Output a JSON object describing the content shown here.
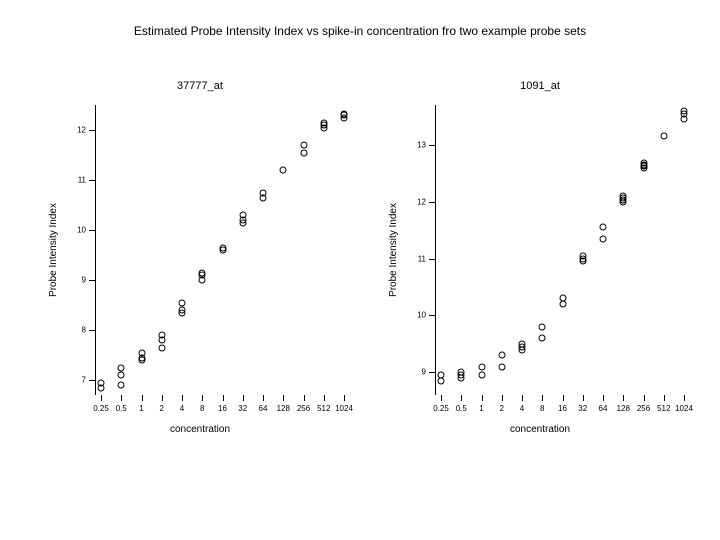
{
  "colors": {
    "background": "#ffffff",
    "foreground": "#000000"
  },
  "main_title": "Estimated Probe Intensity Index vs spike-in concentration fro two example probe sets",
  "main_title_fontsize": 12,
  "panels": {
    "left": {
      "title": "37777_at",
      "ylabel": "Probe Intensity Index",
      "xlabel": "concentration",
      "x_categories": [
        "0.25",
        "0.5",
        "1",
        "2",
        "4",
        "8",
        "16",
        "32",
        "64",
        "128",
        "256",
        "512",
        "1024"
      ],
      "y_ticks": [
        7,
        8,
        9,
        10,
        11,
        12
      ],
      "y_lim": [
        6.7,
        12.5
      ],
      "marker": "open_circle",
      "marker_color": "#000000",
      "points": [
        {
          "xi": 0,
          "y": 6.85
        },
        {
          "xi": 0,
          "y": 6.95
        },
        {
          "xi": 1,
          "y": 6.9
        },
        {
          "xi": 1,
          "y": 7.1
        },
        {
          "xi": 1,
          "y": 7.25
        },
        {
          "xi": 2,
          "y": 7.4
        },
        {
          "xi": 2,
          "y": 7.45
        },
        {
          "xi": 2,
          "y": 7.55
        },
        {
          "xi": 3,
          "y": 7.65
        },
        {
          "xi": 3,
          "y": 7.8
        },
        {
          "xi": 3,
          "y": 7.9
        },
        {
          "xi": 4,
          "y": 8.35
        },
        {
          "xi": 4,
          "y": 8.4
        },
        {
          "xi": 4,
          "y": 8.55
        },
        {
          "xi": 5,
          "y": 9.0
        },
        {
          "xi": 5,
          "y": 9.1
        },
        {
          "xi": 5,
          "y": 9.15
        },
        {
          "xi": 6,
          "y": 9.6
        },
        {
          "xi": 6,
          "y": 9.65
        },
        {
          "xi": 7,
          "y": 10.15
        },
        {
          "xi": 7,
          "y": 10.2
        },
        {
          "xi": 7,
          "y": 10.3
        },
        {
          "xi": 8,
          "y": 10.65
        },
        {
          "xi": 8,
          "y": 10.75
        },
        {
          "xi": 9,
          "y": 11.2
        },
        {
          "xi": 10,
          "y": 11.55
        },
        {
          "xi": 10,
          "y": 11.7
        },
        {
          "xi": 11,
          "y": 12.05
        },
        {
          "xi": 11,
          "y": 12.1
        },
        {
          "xi": 11,
          "y": 12.15
        },
        {
          "xi": 12,
          "y": 12.25
        },
        {
          "xi": 12,
          "y": 12.3
        },
        {
          "xi": 12,
          "y": 12.33
        }
      ]
    },
    "right": {
      "title": "1091_at",
      "ylabel": "Probe Intensity Index",
      "xlabel": "concentration",
      "x_categories": [
        "0.25",
        "0.5",
        "1",
        "2",
        "4",
        "8",
        "16",
        "32",
        "64",
        "128",
        "256",
        "512",
        "1024"
      ],
      "y_ticks": [
        9,
        10,
        11,
        12,
        13
      ],
      "y_lim": [
        8.6,
        13.7
      ],
      "marker": "open_circle",
      "marker_color": "#000000",
      "points": [
        {
          "xi": 0,
          "y": 8.85
        },
        {
          "xi": 0,
          "y": 8.95
        },
        {
          "xi": 1,
          "y": 8.9
        },
        {
          "xi": 1,
          "y": 8.95
        },
        {
          "xi": 1,
          "y": 9.0
        },
        {
          "xi": 2,
          "y": 8.95
        },
        {
          "xi": 2,
          "y": 9.1
        },
        {
          "xi": 3,
          "y": 9.1
        },
        {
          "xi": 3,
          "y": 9.3
        },
        {
          "xi": 4,
          "y": 9.4
        },
        {
          "xi": 4,
          "y": 9.45
        },
        {
          "xi": 4,
          "y": 9.5
        },
        {
          "xi": 5,
          "y": 9.6
        },
        {
          "xi": 5,
          "y": 9.8
        },
        {
          "xi": 6,
          "y": 10.2
        },
        {
          "xi": 6,
          "y": 10.3
        },
        {
          "xi": 7,
          "y": 10.95
        },
        {
          "xi": 7,
          "y": 11.0
        },
        {
          "xi": 7,
          "y": 11.05
        },
        {
          "xi": 8,
          "y": 11.35
        },
        {
          "xi": 8,
          "y": 11.55
        },
        {
          "xi": 9,
          "y": 12.0
        },
        {
          "xi": 9,
          "y": 12.03
        },
        {
          "xi": 9,
          "y": 12.06
        },
        {
          "xi": 9,
          "y": 12.1
        },
        {
          "xi": 10,
          "y": 12.6
        },
        {
          "xi": 10,
          "y": 12.62
        },
        {
          "xi": 10,
          "y": 12.65
        },
        {
          "xi": 10,
          "y": 12.68
        },
        {
          "xi": 11,
          "y": 13.15
        },
        {
          "xi": 12,
          "y": 13.45
        },
        {
          "xi": 12,
          "y": 13.55
        },
        {
          "xi": 12,
          "y": 13.6
        }
      ]
    }
  }
}
